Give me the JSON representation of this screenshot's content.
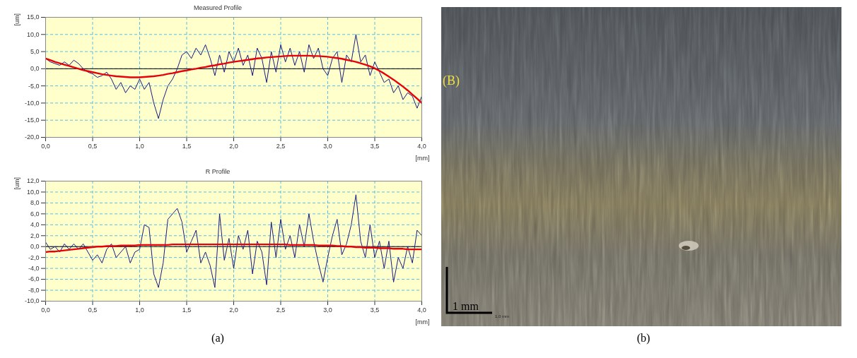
{
  "chart_data": [
    {
      "type": "line",
      "title": "Measured Profile",
      "x_label": "[mm]",
      "y_label": "[um]",
      "x": [
        0,
        0.05,
        0.1,
        0.15,
        0.2,
        0.25,
        0.3,
        0.35,
        0.4,
        0.45,
        0.5,
        0.55,
        0.6,
        0.65,
        0.7,
        0.75,
        0.8,
        0.85,
        0.9,
        0.95,
        1,
        1.05,
        1.1,
        1.15,
        1.2,
        1.25,
        1.3,
        1.35,
        1.4,
        1.45,
        1.5,
        1.55,
        1.6,
        1.65,
        1.7,
        1.75,
        1.8,
        1.85,
        1.9,
        1.95,
        2,
        2.05,
        2.1,
        2.15,
        2.2,
        2.25,
        2.3,
        2.35,
        2.4,
        2.45,
        2.5,
        2.55,
        2.6,
        2.65,
        2.7,
        2.75,
        2.8,
        2.85,
        2.9,
        2.95,
        3,
        3.05,
        3.1,
        3.15,
        3.2,
        3.25,
        3.3,
        3.35,
        3.4,
        3.45,
        3.5,
        3.55,
        3.6,
        3.65,
        3.7,
        3.75,
        3.8,
        3.85,
        3.9,
        3.95,
        4
      ],
      "xlim": [
        0,
        4
      ],
      "xticks": [
        {
          "value": 0,
          "label": "0,0"
        },
        {
          "value": 0.5,
          "label": "0,5"
        },
        {
          "value": 1,
          "label": "1,0"
        },
        {
          "value": 1.5,
          "label": "1,5"
        },
        {
          "value": 2,
          "label": "2,0"
        },
        {
          "value": 2.5,
          "label": "2,5"
        },
        {
          "value": 3,
          "label": "3,0"
        },
        {
          "value": 3.5,
          "label": "3,5"
        },
        {
          "value": 4,
          "label": "4,0"
        }
      ],
      "ylim": [
        -20,
        15
      ],
      "yticks": [
        {
          "value": -20,
          "label": "-20,0"
        },
        {
          "value": -15,
          "label": "-15,0"
        },
        {
          "value": -10,
          "label": "-10,0"
        },
        {
          "value": -5,
          "label": "-5,0"
        },
        {
          "value": 0,
          "label": "0,0"
        },
        {
          "value": 5,
          "label": "5,0"
        },
        {
          "value": 10,
          "label": "10,0"
        },
        {
          "value": 15,
          "label": "15,0"
        }
      ],
      "grid": true,
      "series": [
        {
          "color": "#1a1a80",
          "values": [
            3,
            2,
            1.5,
            1,
            2,
            1,
            2.5,
            1.5,
            0,
            -1,
            -1.5,
            -2.5,
            -2,
            -1,
            -3,
            -6,
            -4,
            -7,
            -5,
            -6,
            -3,
            -6,
            -4,
            -10,
            -14.5,
            -9,
            -5,
            -3,
            0,
            4,
            5,
            3,
            6,
            4,
            7,
            3,
            -2,
            4,
            -1,
            5,
            2,
            6,
            1,
            4,
            -2,
            6,
            3,
            -4,
            5,
            -1,
            7,
            2,
            6,
            1,
            5,
            -1,
            7,
            3,
            6,
            0,
            -2,
            3,
            5,
            -4,
            4,
            2,
            10,
            2,
            4,
            -2,
            2,
            -1,
            -4,
            -3,
            -7,
            -5,
            -9,
            -7,
            -8,
            -11.5,
            -8
          ]
        },
        {
          "color": "#e8000b",
          "values": [
            3,
            2.5,
            2,
            1.6,
            1.2,
            0.8,
            0.4,
            0,
            -0.4,
            -0.7,
            -1,
            -1.3,
            -1.6,
            -1.8,
            -2,
            -2.2,
            -2.3,
            -2.4,
            -2.5,
            -2.5,
            -2.5,
            -2.4,
            -2.3,
            -2.2,
            -2,
            -1.8,
            -1.5,
            -1.3,
            -1,
            -0.7,
            -0.5,
            -0.2,
            0,
            0.3,
            0.5,
            0.8,
            1,
            1.3,
            1.5,
            1.8,
            2,
            2.2,
            2.4,
            2.6,
            2.8,
            3,
            3.1,
            3.3,
            3.4,
            3.5,
            3.6,
            3.7,
            3.8,
            3.8,
            3.8,
            3.8,
            3.8,
            3.7,
            3.7,
            3.6,
            3.5,
            3.3,
            3.1,
            2.9,
            2.6,
            2.3,
            2,
            1.6,
            1.2,
            0.7,
            0.1,
            -0.6,
            -1.4,
            -2.3,
            -3.2,
            -4.2,
            -5.2,
            -6.3,
            -7.5,
            -8.7,
            -10
          ]
        }
      ]
    },
    {
      "type": "line",
      "title": "R Profile",
      "x_label": "[mm]",
      "y_label": "[um]",
      "x": [
        0,
        0.05,
        0.1,
        0.15,
        0.2,
        0.25,
        0.3,
        0.35,
        0.4,
        0.45,
        0.5,
        0.55,
        0.6,
        0.65,
        0.7,
        0.75,
        0.8,
        0.85,
        0.9,
        0.95,
        1,
        1.05,
        1.1,
        1.15,
        1.2,
        1.25,
        1.3,
        1.35,
        1.4,
        1.45,
        1.5,
        1.55,
        1.6,
        1.65,
        1.7,
        1.75,
        1.8,
        1.85,
        1.9,
        1.95,
        2,
        2.05,
        2.1,
        2.15,
        2.2,
        2.25,
        2.3,
        2.35,
        2.4,
        2.45,
        2.5,
        2.55,
        2.6,
        2.65,
        2.7,
        2.75,
        2.8,
        2.85,
        2.9,
        2.95,
        3,
        3.05,
        3.1,
        3.15,
        3.2,
        3.25,
        3.3,
        3.35,
        3.4,
        3.45,
        3.5,
        3.55,
        3.6,
        3.65,
        3.7,
        3.75,
        3.8,
        3.85,
        3.9,
        3.95,
        4
      ],
      "xlim": [
        0,
        4
      ],
      "xticks": [
        {
          "value": 0,
          "label": "0,0"
        },
        {
          "value": 0.5,
          "label": "0,5"
        },
        {
          "value": 1,
          "label": "1,0"
        },
        {
          "value": 1.5,
          "label": "1,5"
        },
        {
          "value": 2,
          "label": "2,0"
        },
        {
          "value": 2.5,
          "label": "2,5"
        },
        {
          "value": 3,
          "label": "3,0"
        },
        {
          "value": 3.5,
          "label": "3,5"
        },
        {
          "value": 4,
          "label": "4,0"
        }
      ],
      "ylim": [
        -10,
        12
      ],
      "yticks": [
        {
          "value": -10,
          "label": "-10,0"
        },
        {
          "value": -8,
          "label": "-8,0"
        },
        {
          "value": -6,
          "label": "-6,0"
        },
        {
          "value": -4,
          "label": "-4,0"
        },
        {
          "value": -2,
          "label": "-2,0"
        },
        {
          "value": 0,
          "label": "0,0"
        },
        {
          "value": 2,
          "label": "2,0"
        },
        {
          "value": 4,
          "label": "4,0"
        },
        {
          "value": 6,
          "label": "6,0"
        },
        {
          "value": 8,
          "label": "8,0"
        },
        {
          "value": 10,
          "label": "10,0"
        },
        {
          "value": 12,
          "label": "12,0"
        }
      ],
      "grid": true,
      "series": [
        {
          "color": "#1a1a80",
          "values": [
            0.8,
            -0.5,
            0,
            -1,
            0.5,
            -0.5,
            0.5,
            -0.5,
            0.5,
            -1,
            -2.5,
            -1.5,
            -3,
            -0.5,
            0.5,
            -2,
            -1,
            0,
            -3,
            -1,
            -0.5,
            4,
            3.5,
            -5,
            -7.5,
            -3,
            5,
            6,
            7,
            4.5,
            -1,
            1,
            3,
            -3,
            -1,
            -3.5,
            -7.5,
            6,
            -2.5,
            1.5,
            -4,
            2,
            -0.5,
            3,
            -5,
            1,
            -1,
            -7,
            4.5,
            -2,
            5,
            -0.5,
            2,
            -2,
            4,
            0,
            6,
            1,
            -3,
            -6.5,
            -2,
            2,
            5,
            -1.5,
            0.5,
            4,
            9.5,
            1,
            -2,
            4,
            -2,
            1,
            -4,
            1,
            -6.5,
            -2,
            -4,
            0,
            -3,
            3,
            2
          ]
        },
        {
          "color": "#e8000b",
          "values": [
            -1,
            -0.9,
            -0.9,
            -0.8,
            -0.7,
            -0.6,
            -0.5,
            -0.4,
            -0.3,
            -0.2,
            -0.1,
            0,
            0,
            0.1,
            0.1,
            0.1,
            0.2,
            0.2,
            0.2,
            0.2,
            0.3,
            0.3,
            0.3,
            0.3,
            0.3,
            0.3,
            0.3,
            0.4,
            0.4,
            0.4,
            0.4,
            0.4,
            0.4,
            0.4,
            0.4,
            0.4,
            0.4,
            0.4,
            0.4,
            0.4,
            0.4,
            0.4,
            0.4,
            0.4,
            0.4,
            0.4,
            0.4,
            0.4,
            0.4,
            0.4,
            0.4,
            0.4,
            0.3,
            0.3,
            0.3,
            0.3,
            0.3,
            0.3,
            0.2,
            0.2,
            0.2,
            0.2,
            0.1,
            0.1,
            0,
            0,
            -0.1,
            -0.1,
            -0.2,
            -0.2,
            -0.2,
            -0.3,
            -0.3,
            -0.3,
            -0.4,
            -0.4,
            -0.4,
            -0.5,
            -0.5,
            -0.5,
            -0.5
          ]
        }
      ]
    }
  ],
  "figure": {
    "captions": [
      "(a)",
      "(b)"
    ],
    "image": {
      "label": "(B)",
      "scale_bar": "1 mm",
      "scale_bar_note": "1.0 mm"
    }
  }
}
